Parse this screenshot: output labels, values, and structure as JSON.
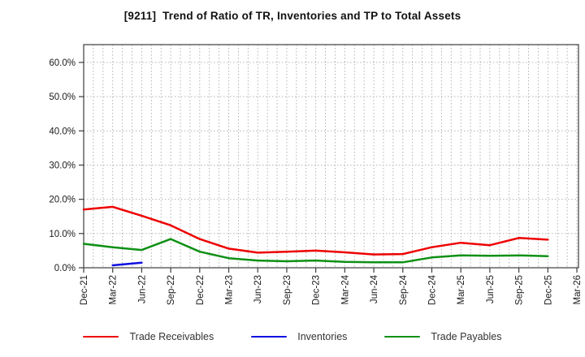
{
  "title": "[9211]  Trend of Ratio of TR, Inventories and TP to Total Assets",
  "colors": {
    "background": "#ffffff",
    "grid": "#aaaaaa",
    "plot_border": "#3c3c3c",
    "tick_text": "#1a1a1a",
    "legend_text": "#333333"
  },
  "chart_data": {
    "type": "line",
    "title": "[9211]  Trend of Ratio of TR, Inventories and TP to Total Assets",
    "x_labels": [
      "Dec-21",
      "Mar-22",
      "Jun-22",
      "Sep-22",
      "Dec-22",
      "Mar-23",
      "Jun-23",
      "Sep-23",
      "Dec-23",
      "Mar-24",
      "Jun-24",
      "Sep-24",
      "Dec-24",
      "Mar-25",
      "Jun-25",
      "Sep-25",
      "Dec-25",
      "Mar-26"
    ],
    "ytick_values": [
      0,
      10,
      20,
      30,
      40,
      50,
      60
    ],
    "ytick_labels": [
      "0.0%",
      "10.0%",
      "20.0%",
      "30.0%",
      "40.0%",
      "50.0%",
      "60.0%"
    ],
    "ylim": [
      0,
      65.2
    ],
    "grid": "dotted gray; horizontal lines every 10%, vertical minor lines monthly (3 per quarter)",
    "legend_position": "bottom center",
    "units": "percent of total assets",
    "series": [
      {
        "name": "Trade Receivables",
        "color": "#ee0000",
        "values": [
          17.0,
          17.8,
          15.2,
          12.4,
          8.4,
          5.6,
          4.4,
          4.7,
          5.0,
          4.5,
          3.9,
          4.0,
          6.0,
          7.3,
          6.6,
          8.7,
          8.2,
          null
        ]
      },
      {
        "name": "Inventories",
        "color": "#0e0ee0",
        "values": [
          null,
          0.7,
          1.5,
          null,
          null,
          null,
          null,
          null,
          null,
          null,
          null,
          null,
          null,
          null,
          null,
          null,
          null,
          null
        ]
      },
      {
        "name": "Trade Payables",
        "color": "#0e9015",
        "values": [
          7.0,
          6.0,
          5.2,
          8.4,
          4.7,
          2.8,
          2.1,
          1.9,
          2.1,
          1.7,
          1.6,
          1.6,
          3.0,
          3.6,
          3.5,
          3.6,
          3.4,
          null
        ]
      }
    ]
  }
}
